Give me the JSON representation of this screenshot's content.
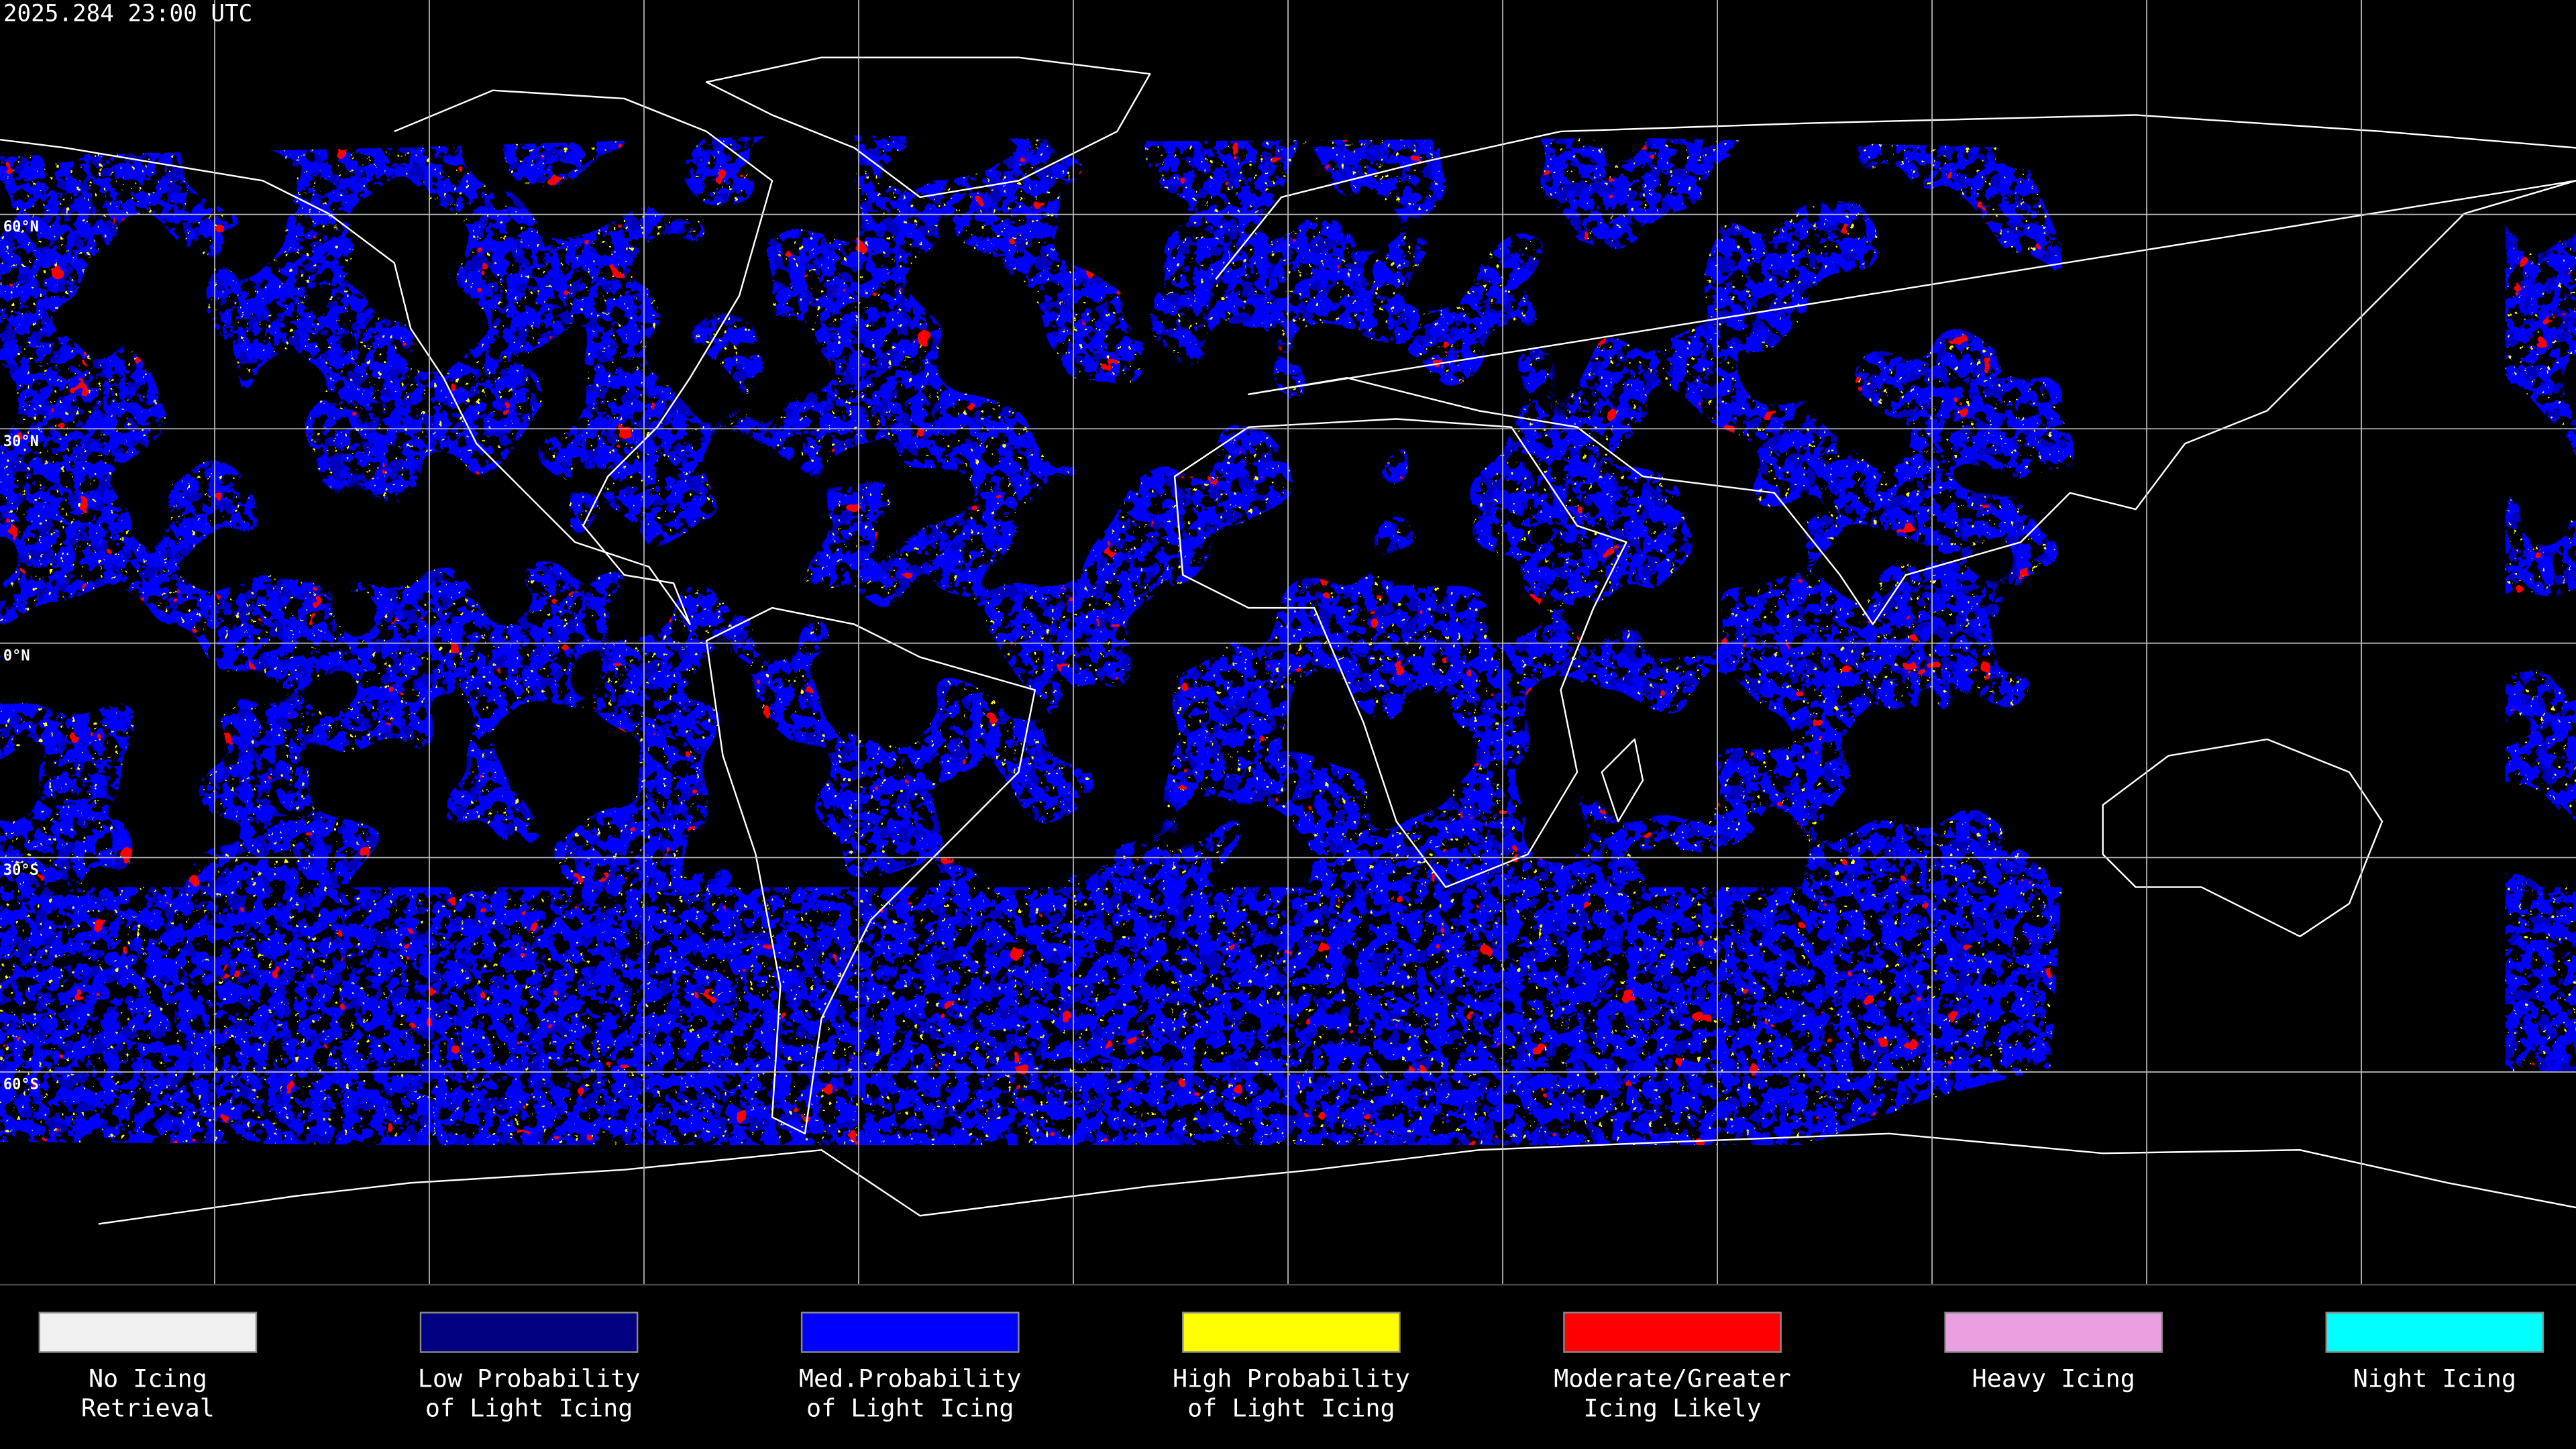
{
  "header": {
    "timestamp": "2025.284 23:00 UTC"
  },
  "latitude_labels": [
    "60°N",
    "30°N",
    "0°N",
    "30°S",
    "60°S"
  ],
  "legend": [
    {
      "label": [
        "No Icing",
        "Retrieval"
      ],
      "color": "#f0f0f0"
    },
    {
      "label": [
        "Low Probability",
        "of Light Icing"
      ],
      "color": "#000080"
    },
    {
      "label": [
        "Med.Probability",
        "of Light Icing"
      ],
      "color": "#0000ff"
    },
    {
      "label": [
        "High Probability",
        "of Light Icing"
      ],
      "color": "#ffff00"
    },
    {
      "label": [
        "Moderate/Greater",
        "Icing Likely"
      ],
      "color": "#ff0000"
    },
    {
      "label": [
        "Heavy Icing"
      ],
      "color": "#e8a0e0"
    },
    {
      "label": [
        "Night Icing"
      ],
      "color": "#00ffff"
    }
  ]
}
